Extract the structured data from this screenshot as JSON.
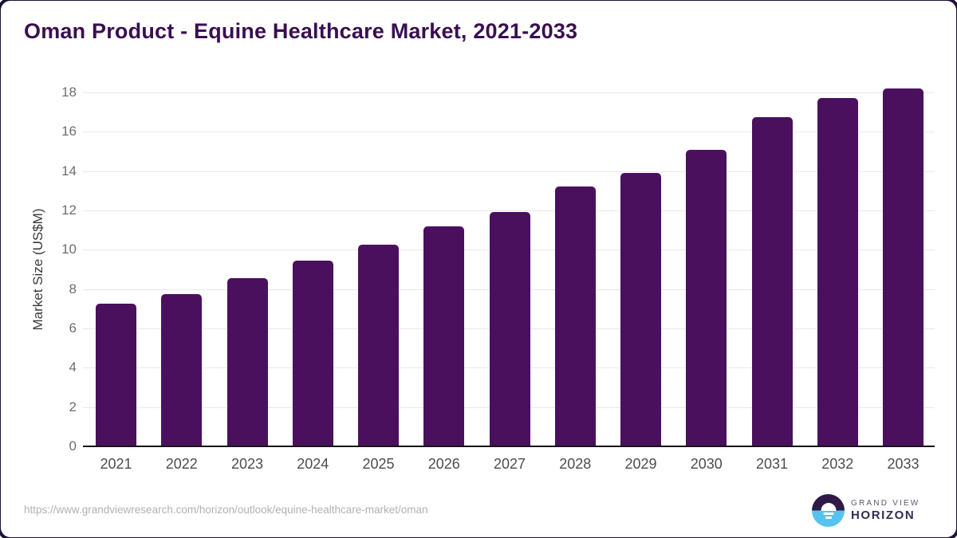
{
  "title": "Oman Product - Equine Healthcare Market, 2021-2033",
  "chart_data": {
    "type": "bar",
    "title": "Oman Product - Equine Healthcare Market, 2021-2033",
    "categories": [
      "2021",
      "2022",
      "2023",
      "2024",
      "2025",
      "2026",
      "2027",
      "2028",
      "2029",
      "2030",
      "2031",
      "2032",
      "2033"
    ],
    "values": [
      7.25,
      7.75,
      8.55,
      9.45,
      10.25,
      11.2,
      11.9,
      13.2,
      13.9,
      15.1,
      16.75,
      17.7,
      18.2
    ],
    "xlabel": "",
    "ylabel": "Market Size (US$M)",
    "ylim": [
      0,
      18.6
    ],
    "yticks": [
      0,
      2,
      4,
      6,
      8,
      10,
      12,
      14,
      16,
      18
    ],
    "grid": true,
    "legend": false
  },
  "footer": {
    "source_url": "https://www.grandviewresearch.com/horizon/outlook/equine-healthcare-market/oman",
    "logo": {
      "icon": "horizon-sunrise-icon",
      "line1": "GRAND VIEW",
      "line2": "HORIZON"
    }
  },
  "colors": {
    "bar": "#4a105e",
    "title": "#3a0e52",
    "gridline": "#e8e8e8",
    "axis_line": "#141414",
    "tick_label": "#6e6e6e",
    "x_label": "#4d4d4d",
    "url": "#b3b0b3",
    "logo_dark_purple": "#2e1a47",
    "logo_blue": "#55c3f0"
  }
}
